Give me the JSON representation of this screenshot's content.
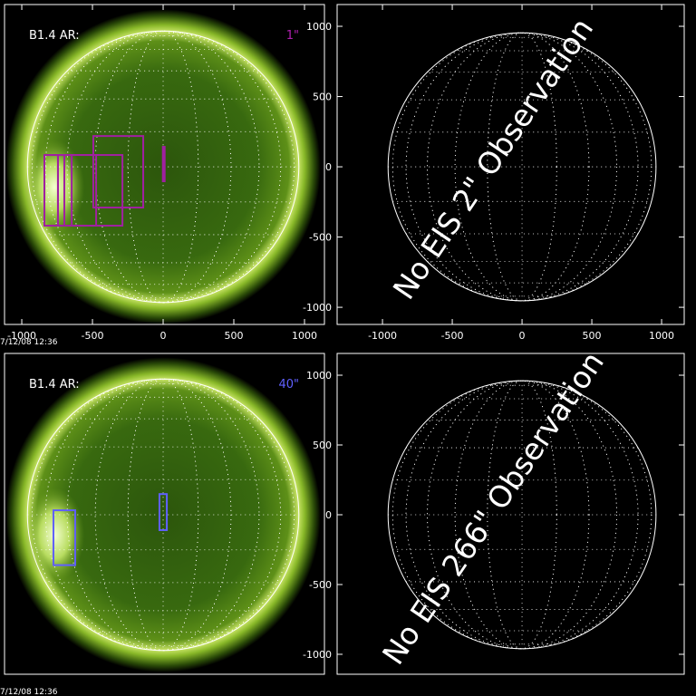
{
  "chart_data": [
    {
      "type": "image",
      "label": "B1.4 AR:",
      "note": "1\"",
      "note_color": "#b020b0",
      "timestamp": "7/12/08 12:36",
      "xlim": [
        -1122,
        1141
      ],
      "ylim": [
        -1122,
        1155
      ],
      "xticks": [
        -1000,
        -500,
        0,
        500,
        1000
      ],
      "box_color": "#a020a0",
      "boxes": [
        {
          "x": [
            -840,
            -744
          ],
          "y": [
            84,
            -419
          ]
        },
        {
          "x": [
            -744,
            -647
          ],
          "y": [
            84,
            -419
          ]
        },
        {
          "x": [
            -699,
            -474
          ],
          "y": [
            84,
            -419
          ]
        },
        {
          "x": [
            -840,
            -288
          ],
          "y": [
            84,
            -419
          ]
        },
        {
          "x": [
            -494,
            -141
          ],
          "y": [
            219,
            -290
          ]
        },
        {
          "x": [
            -2,
            2
          ],
          "y": [
            142,
            -103
          ]
        }
      ]
    },
    {
      "type": "grid",
      "annotation": "No EIS 2\" Observation",
      "xlim": [
        -1325,
        1162
      ],
      "ylim": [
        -1122,
        1155
      ],
      "xticks": [
        -1000,
        -500,
        0,
        500,
        1000
      ],
      "yticks": [
        -1000,
        -500,
        0,
        500,
        1000
      ]
    },
    {
      "type": "image",
      "label": "B1.4 AR:",
      "note": "40\"",
      "note_color": "#6060ff",
      "timestamp": "7/12/08 12:36",
      "xlim": [
        -1122,
        1141
      ],
      "ylim": [
        -1143,
        1156
      ],
      "box_color": "#6060ff",
      "boxes": [
        {
          "x": [
            -776,
            -622
          ],
          "y": [
            32,
            -361
          ]
        },
        {
          "x": [
            -26,
            26
          ],
          "y": [
            148,
            -110
          ]
        }
      ]
    },
    {
      "type": "grid",
      "annotation": "No EIS 266\" Observation",
      "xlim": [
        -1325,
        1162
      ],
      "ylim": [
        -1143,
        1156
      ],
      "yticks": [
        -1000,
        -500,
        0,
        500,
        1000
      ]
    }
  ]
}
